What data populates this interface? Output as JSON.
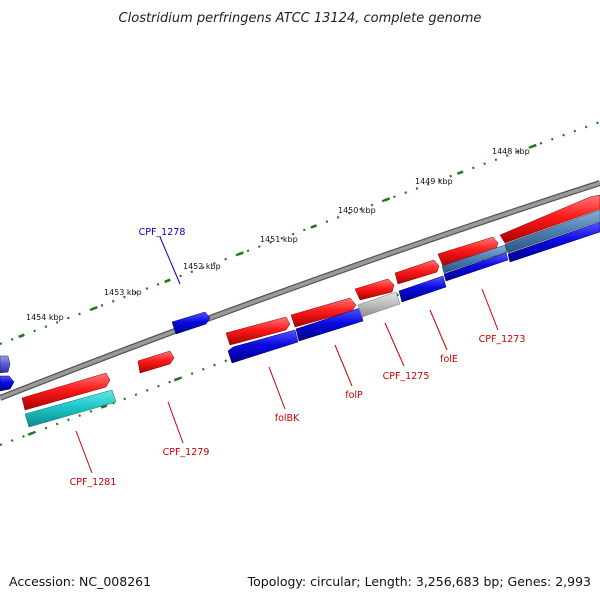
{
  "title": "Clostridium perfringens ATCC 13124, complete genome",
  "kbp_labels": [
    "1448 kbp",
    "1449 kbp",
    "1450 kbp",
    "1451 kbp",
    "1452 kbp",
    "1453 kbp",
    "1454 kbp"
  ],
  "genes": [
    {
      "name": "CPF_1278",
      "color": "#0000cc"
    },
    {
      "name": "folBK",
      "color": "#cc0000"
    },
    {
      "name": "folP",
      "color": "#cc0000"
    },
    {
      "name": "CPF_1275",
      "color": "#cc0000"
    },
    {
      "name": "folE",
      "color": "#cc0000"
    },
    {
      "name": "CPF_1273",
      "color": "#cc0000"
    },
    {
      "name": "CPF_1279",
      "color": "#cc0000"
    },
    {
      "name": "CPF_1281",
      "color": "#cc0000"
    }
  ],
  "colors": {
    "forward": "#ee1111",
    "reverse": "#1111dd",
    "rna": "#22cccc",
    "other": "#bbbbbb",
    "steel": "#4a7fb0",
    "backbone": "#888888",
    "ticks": "#227722"
  },
  "footer": {
    "accession": "Accession: NC_008261",
    "summary": "Topology: circular; Length: 3,256,683 bp; Genes: 2,993"
  }
}
